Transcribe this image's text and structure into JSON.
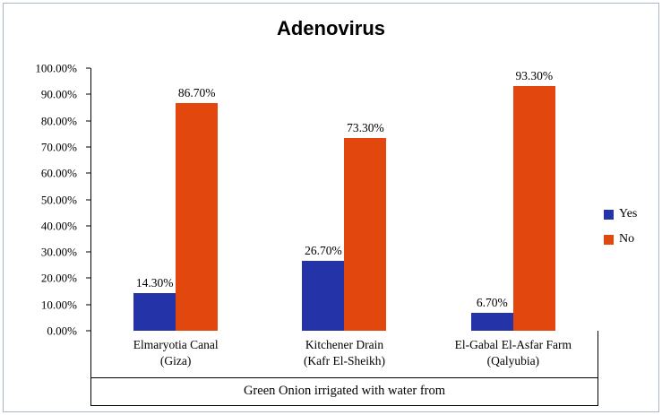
{
  "chart_data": {
    "type": "bar",
    "title": "Adenovirus",
    "categories": [
      "Elmaryotia Canal\n(Giza)",
      "Kitchener Drain\n(Kafr El-Sheikh)",
      "El-Gabal El-Asfar Farm\n(Qalyubia)"
    ],
    "series": [
      {
        "name": "Yes",
        "color": "#2533a8",
        "values": [
          14.3,
          26.7,
          6.7
        ],
        "labels": [
          "14.30%",
          "26.70%",
          "6.70%"
        ]
      },
      {
        "name": "No",
        "color": "#e2470e",
        "values": [
          86.7,
          73.3,
          93.3
        ],
        "labels": [
          "86.70%",
          "73.30%",
          "93.30%"
        ]
      }
    ],
    "xlabel": "Green Onion irrigated with water from",
    "ylabel": "",
    "ylim": [
      0,
      100
    ],
    "yticks": [
      "0.00%",
      "10.00%",
      "20.00%",
      "30.00%",
      "40.00%",
      "50.00%",
      "60.00%",
      "70.00%",
      "80.00%",
      "90.00%",
      "100.00%"
    ],
    "grid": false,
    "legend_position": "right"
  }
}
